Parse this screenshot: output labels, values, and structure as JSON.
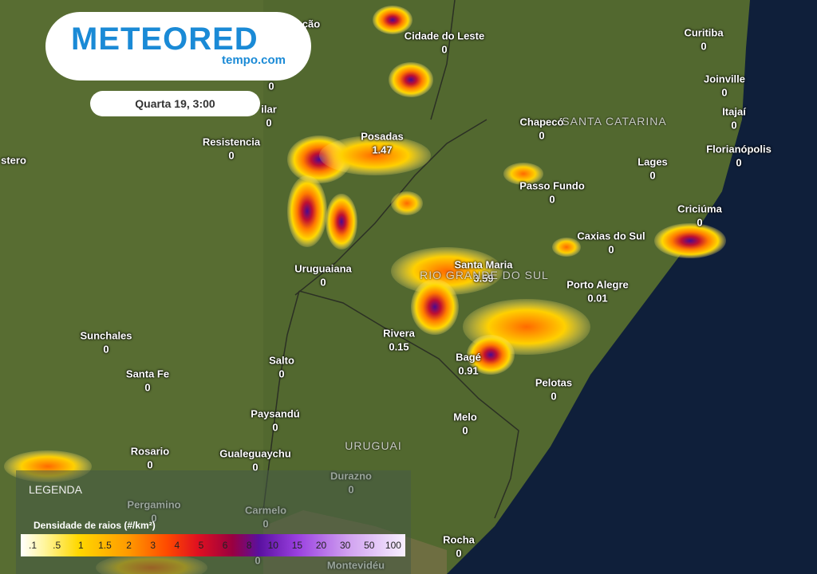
{
  "logo": {
    "brand": "METEORED",
    "site": "tempo.com"
  },
  "date": "Quarta 19, 3:00",
  "regions": [
    "SANTA CATARINA",
    "RIO GRANDE DO SUL",
    "URUGUAI"
  ],
  "cities": [
    {
      "name": "ção"
    },
    {
      "name": "Cidade do Leste",
      "value": "0"
    },
    {
      "name": "Curitiba",
      "value": "0"
    },
    {
      "name": "Joinville",
      "value": "0"
    },
    {
      "name": "Itajaí",
      "value": "0"
    },
    {
      "value": "0"
    },
    {
      "name": "ilar",
      "value": "0"
    },
    {
      "name": "Chapecó",
      "value": "0"
    },
    {
      "name": "Resistencia",
      "value": "0"
    },
    {
      "name": "Posadas",
      "value": "1.47"
    },
    {
      "name": "Florianópolis",
      "value": "0"
    },
    {
      "name": "stero"
    },
    {
      "name": "Lages",
      "value": "0"
    },
    {
      "name": "Passo Fundo",
      "value": "0"
    },
    {
      "name": "Criciúma",
      "value": "0"
    },
    {
      "name": "Caxias do Sul",
      "value": "0"
    },
    {
      "name": "Uruguaiana",
      "value": "0"
    },
    {
      "name": "Santa Maria",
      "value": "3.59"
    },
    {
      "name": "Porto Alegre",
      "value": "0.01"
    },
    {
      "name": "Sunchales",
      "value": "0"
    },
    {
      "name": "Rivera",
      "value": "0.15"
    },
    {
      "name": "Salto",
      "value": "0"
    },
    {
      "name": "Bagé",
      "value": "0.91"
    },
    {
      "name": "Santa Fe",
      "value": "0"
    },
    {
      "name": "Pelotas",
      "value": "0"
    },
    {
      "name": "Paysandú",
      "value": "0"
    },
    {
      "name": "Melo",
      "value": "0"
    },
    {
      "name": "Rosario",
      "value": "0"
    },
    {
      "name": "Gualeguaychu",
      "value": "0"
    },
    {
      "name": "Durazno",
      "value": "0"
    },
    {
      "name": "Pergamino",
      "value": "0"
    },
    {
      "name": "Carmelo",
      "value": "0"
    },
    {
      "name": "Rocha",
      "value": "0"
    },
    {
      "value": "0"
    },
    {
      "name": "Montevidéu"
    }
  ],
  "legend": {
    "title": "LEGENDA",
    "subtitle": "Densidade de raios (#/km²)",
    "scale": [
      ".1",
      ".5",
      "1",
      "1.5",
      "2",
      "3",
      "4",
      "5",
      "6",
      "8",
      "10",
      "15",
      "20",
      "30",
      "50",
      "100"
    ]
  }
}
